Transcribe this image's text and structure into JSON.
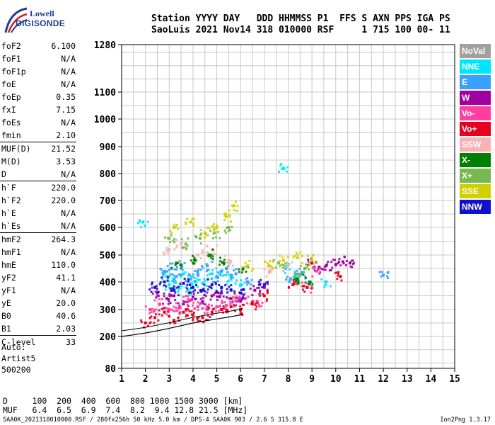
{
  "logo": {
    "line1": "Lowell",
    "line2": "DIGISONDE"
  },
  "header": {
    "labels": "Station YYYY DAY   DDD HHMMSS P1  FFS S AXN PPS IGA PS",
    "values": "SaoLuis 2021 Nov14 318 010000 RSF     1 715 100 00- 11"
  },
  "params_group1": [
    {
      "label": "foF2",
      "value": "6.100"
    },
    {
      "label": "foF1",
      "value": "N/A"
    },
    {
      "label": "foF1p",
      "value": "N/A"
    },
    {
      "label": "foE",
      "value": "N/A"
    },
    {
      "label": "foEp",
      "value": "0.35"
    },
    {
      "label": "fxI",
      "value": "7.15"
    },
    {
      "label": "foEs",
      "value": "N/A"
    },
    {
      "label": "fmin",
      "value": "2.10"
    }
  ],
  "params_group2": [
    {
      "label": "MUF(D)",
      "value": "21.52"
    },
    {
      "label": "M(D)",
      "value": "3.53"
    },
    {
      "label": "D",
      "value": "N/A"
    }
  ],
  "params_group3": [
    {
      "label": "h`F",
      "value": "220.0"
    },
    {
      "label": "h`F2",
      "value": "220.0"
    },
    {
      "label": "h`E",
      "value": "N/A"
    },
    {
      "label": "h`Es",
      "value": "N/A"
    }
  ],
  "params_group4": [
    {
      "label": "hmF2",
      "value": "264.3"
    },
    {
      "label": "hmF1",
      "value": "N/A"
    },
    {
      "label": "hmE",
      "value": "110.0"
    },
    {
      "label": "yF2",
      "value": "41.1"
    },
    {
      "label": "yF1",
      "value": "N/A"
    },
    {
      "label": "yE",
      "value": "20.0"
    },
    {
      "label": "B0",
      "value": "40.6"
    },
    {
      "label": "B1",
      "value": "2.03"
    }
  ],
  "params_group5": [
    {
      "label": "C-level",
      "value": "33"
    }
  ],
  "autoscaling": {
    "line1": "Auto:",
    "line2": "Artist5",
    "line3": "500200"
  },
  "legend": [
    {
      "label": "NoVal",
      "color": "#a0a0a0"
    },
    {
      "label": "NNE",
      "color": "#00e5ff"
    },
    {
      "label": "E",
      "color": "#3aa0ff"
    },
    {
      "label": "W",
      "color": "#a000a0"
    },
    {
      "label": "Vo-",
      "color": "#ff3fa0"
    },
    {
      "label": "Vo+",
      "color": "#e60020"
    },
    {
      "label": "SSW",
      "color": "#f5b3b3"
    },
    {
      "label": "X-",
      "color": "#008000"
    },
    {
      "label": "X+",
      "color": "#78b850"
    },
    {
      "label": "SSE",
      "color": "#d0d000"
    },
    {
      "label": "NNW",
      "color": "#1010d0"
    }
  ],
  "muf_table": {
    "row1": "D     100  200  400  600  800 1000 1500 3000 [km]",
    "row2": "MUF   6.4  6.5  6.9  7.4  8.2  9.4 12.8 21.5 [MHz]"
  },
  "footer": "SAA0K_2021318010000.RSF / 280fx256h 50 kHz 5.0 km / DPS-4 SAA0K 903 / 2.6 S 315.8 E",
  "version": "Ion2Png 1.3.17",
  "chart_data": {
    "type": "scatter",
    "title": "",
    "xlabel": "",
    "ylabel": "",
    "xlim": [
      1,
      15
    ],
    "ylim": [
      80,
      1280
    ],
    "x_ticks": [
      1,
      2,
      3,
      4,
      5,
      6,
      7,
      8,
      9,
      10,
      11,
      12,
      13,
      14,
      15
    ],
    "y_ticks": [
      80,
      200,
      300,
      400,
      500,
      600,
      700,
      800,
      900,
      1000,
      1100,
      1280
    ],
    "y_scale": "non-linear (ionogram virtual height scale)",
    "grid": true,
    "series": [
      {
        "name": "NNE",
        "values": [
          [
            2.9,
            420
          ],
          [
            3.0,
            390
          ],
          [
            3.2,
            410
          ],
          [
            3.4,
            380
          ],
          [
            3.6,
            430
          ],
          [
            3.8,
            370
          ],
          [
            4.1,
            400
          ],
          [
            4.4,
            395
          ],
          [
            4.8,
            430
          ],
          [
            5.2,
            440
          ],
          [
            5.6,
            410
          ],
          [
            6.0,
            390
          ],
          [
            7.9,
            450
          ],
          [
            8.3,
            420
          ],
          [
            1.9,
            620
          ],
          [
            7.8,
            820
          ],
          [
            9.6,
            400
          ]
        ]
      },
      {
        "name": "E",
        "values": [
          [
            2.8,
            440
          ],
          [
            3.1,
            450
          ],
          [
            3.3,
            420
          ],
          [
            3.5,
            460
          ],
          [
            3.9,
            410
          ],
          [
            4.2,
            440
          ],
          [
            4.6,
            460
          ],
          [
            5.0,
            420
          ],
          [
            5.4,
            450
          ],
          [
            5.8,
            430
          ],
          [
            6.3,
            400
          ],
          [
            8.1,
            410
          ],
          [
            8.6,
            430
          ],
          [
            12.0,
            425
          ]
        ]
      },
      {
        "name": "W",
        "values": [
          [
            2.5,
            360
          ],
          [
            2.9,
            340
          ],
          [
            3.2,
            350
          ],
          [
            3.6,
            320
          ],
          [
            4.0,
            345
          ],
          [
            4.4,
            330
          ],
          [
            4.8,
            350
          ],
          [
            5.2,
            360
          ],
          [
            5.6,
            340
          ],
          [
            6.0,
            330
          ],
          [
            6.6,
            370
          ],
          [
            7.0,
            380
          ],
          [
            9.0,
            470
          ],
          [
            9.3,
            455
          ],
          [
            9.6,
            460
          ],
          [
            10.0,
            465
          ],
          [
            10.3,
            475
          ],
          [
            10.6,
            470
          ]
        ]
      },
      {
        "name": "Vo-",
        "values": [
          [
            2.2,
            300
          ],
          [
            2.6,
            320
          ],
          [
            3.0,
            300
          ],
          [
            3.4,
            305
          ],
          [
            3.8,
            330
          ],
          [
            4.2,
            310
          ],
          [
            4.6,
            300
          ],
          [
            5.0,
            310
          ],
          [
            5.4,
            315
          ],
          [
            5.8,
            330
          ],
          [
            6.2,
            340
          ],
          [
            6.7,
            330
          ],
          [
            8.8,
            380
          ],
          [
            9.2,
            440
          ]
        ]
      },
      {
        "name": "Vo+",
        "values": [
          [
            2.0,
            250
          ],
          [
            2.4,
            270
          ],
          [
            2.8,
            290
          ],
          [
            3.2,
            260
          ],
          [
            3.6,
            290
          ],
          [
            4.0,
            280
          ],
          [
            4.4,
            270
          ],
          [
            4.8,
            290
          ],
          [
            5.2,
            300
          ],
          [
            5.6,
            310
          ],
          [
            6.0,
            300
          ],
          [
            6.5,
            320
          ],
          [
            7.0,
            350
          ],
          [
            8.2,
            390
          ],
          [
            8.8,
            380
          ],
          [
            10.2,
            420
          ]
        ]
      },
      {
        "name": "SSW",
        "values": [
          [
            3.0,
            520
          ],
          [
            3.5,
            540
          ],
          [
            4.2,
            500
          ],
          [
            4.8,
            520
          ],
          [
            5.5,
            480
          ],
          [
            7.2,
            440
          ],
          [
            8.0,
            460
          ]
        ]
      },
      {
        "name": "X-",
        "values": [
          [
            3.3,
            470
          ],
          [
            4.1,
            480
          ],
          [
            4.7,
            500
          ],
          [
            5.3,
            470
          ],
          [
            6.1,
            450
          ],
          [
            8.4,
            410
          ],
          [
            8.9,
            400
          ]
        ]
      },
      {
        "name": "X+",
        "values": [
          [
            3.0,
            560
          ],
          [
            3.7,
            540
          ],
          [
            4.3,
            560
          ],
          [
            4.9,
            580
          ],
          [
            5.5,
            600
          ],
          [
            7.6,
            470
          ],
          [
            8.3,
            430
          ],
          [
            8.7,
            450
          ]
        ]
      },
      {
        "name": "SSE",
        "values": [
          [
            3.2,
            600
          ],
          [
            3.9,
            620
          ],
          [
            4.5,
            580
          ],
          [
            5.0,
            600
          ],
          [
            5.4,
            640
          ],
          [
            5.7,
            680
          ],
          [
            6.3,
            460
          ],
          [
            7.2,
            460
          ],
          [
            7.8,
            480
          ],
          [
            8.4,
            490
          ],
          [
            9.0,
            480
          ]
        ]
      },
      {
        "name": "NNW",
        "values": [
          [
            2.4,
            380
          ],
          [
            2.8,
            400
          ],
          [
            3.2,
            370
          ],
          [
            3.6,
            395
          ],
          [
            4.0,
            380
          ],
          [
            4.4,
            370
          ],
          [
            4.8,
            390
          ],
          [
            5.2,
            380
          ],
          [
            5.6,
            370
          ],
          [
            6.0,
            360
          ],
          [
            7.0,
            390
          ]
        ]
      }
    ],
    "profile_curve": {
      "x": [
        1.0,
        1.5,
        2.0,
        2.5,
        3.0,
        3.5,
        4.0,
        4.5,
        5.0,
        5.5,
        6.0,
        6.1
      ],
      "y": [
        200,
        206,
        213,
        221,
        230,
        240,
        250,
        258,
        265,
        272,
        280,
        285
      ]
    }
  }
}
